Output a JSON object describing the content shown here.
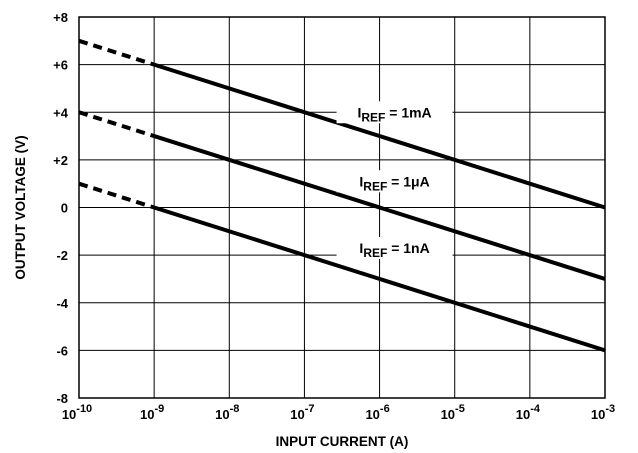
{
  "chart_data": {
    "type": "line",
    "title": "",
    "xlabel": "INPUT CURRENT (A)",
    "ylabel": "OUTPUT VOLTAGE (V)",
    "x_scale": "log",
    "xlim": [
      1e-10,
      0.001
    ],
    "ylim": [
      -8,
      8
    ],
    "grid": true,
    "x_ticks": [
      {
        "base": "10",
        "exp": "-10"
      },
      {
        "base": "10",
        "exp": "-9"
      },
      {
        "base": "10",
        "exp": "-8"
      },
      {
        "base": "10",
        "exp": "-7"
      },
      {
        "base": "10",
        "exp": "-6"
      },
      {
        "base": "10",
        "exp": "-5"
      },
      {
        "base": "10",
        "exp": "-4"
      },
      {
        "base": "10",
        "exp": "-3"
      }
    ],
    "y_ticks": [
      "+8",
      "+6",
      "+4",
      "+2",
      "0",
      "-2",
      "-4",
      "-6",
      "-8"
    ],
    "series": [
      {
        "label_main": "I",
        "label_sub": "REF",
        "label_rest": " = 1mA",
        "label_x": 1e-06,
        "label_y": 4,
        "dashed": {
          "x": [
            1e-10,
            1e-09
          ],
          "y": [
            7,
            6
          ]
        },
        "solid": {
          "x": [
            1e-09,
            0.001
          ],
          "y": [
            6,
            0
          ]
        }
      },
      {
        "label_main": "I",
        "label_sub": "REF",
        "label_rest": " = 1μA",
        "label_x": 1e-06,
        "label_y": 1.1,
        "dashed": {
          "x": [
            1e-10,
            1e-09
          ],
          "y": [
            4,
            3
          ]
        },
        "solid": {
          "x": [
            1e-09,
            0.001
          ],
          "y": [
            3,
            -3
          ]
        }
      },
      {
        "label_main": "I",
        "label_sub": "REF",
        "label_rest": " = 1nA",
        "label_x": 1e-06,
        "label_y": -1.7,
        "dashed": {
          "x": [
            1e-10,
            1e-09
          ],
          "y": [
            1,
            0
          ]
        },
        "solid": {
          "x": [
            1e-09,
            0.001
          ],
          "y": [
            0,
            -6
          ]
        }
      }
    ]
  }
}
